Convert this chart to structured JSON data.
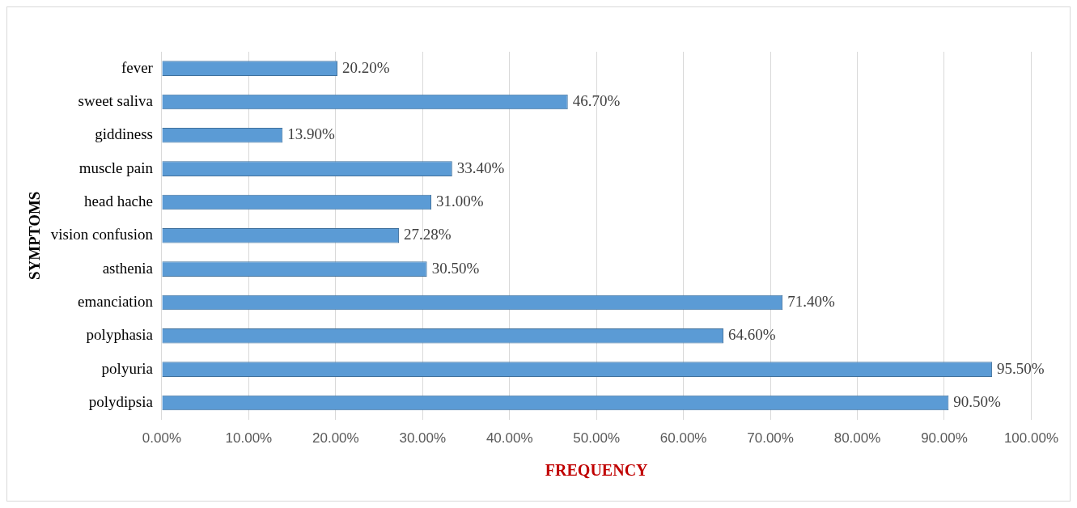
{
  "chart_data": {
    "type": "bar",
    "orientation": "horizontal",
    "xlabel": "FREQUENCY",
    "ylabel": "SYMPTOMS",
    "categories": [
      "fever",
      "sweet saliva",
      "giddiness",
      "muscle pain",
      "head hache",
      "vision confusion",
      "asthenia",
      "emanciation",
      "polyphasia",
      "polyuria",
      "polydipsia"
    ],
    "values": [
      20.2,
      46.7,
      13.9,
      33.4,
      31.0,
      27.28,
      30.5,
      71.4,
      64.6,
      95.5,
      90.5
    ],
    "value_labels": [
      "20.20%",
      "46.70%",
      "13.90%",
      "33.40%",
      "31.00%",
      "27.28%",
      "30.50%",
      "71.40%",
      "64.60%",
      "95.50%",
      "90.50%"
    ],
    "color": "#5b9bd5",
    "xlim": [
      0,
      100
    ],
    "xticks": [
      {
        "value": 0,
        "label": "0.00%"
      },
      {
        "value": 10,
        "label": "10.00%"
      },
      {
        "value": 20,
        "label": "20.00%"
      },
      {
        "value": 30,
        "label": "30.00%"
      },
      {
        "value": 40,
        "label": "40.00%"
      },
      {
        "value": 50,
        "label": "50.00%"
      },
      {
        "value": 60,
        "label": "60.00%"
      },
      {
        "value": 70,
        "label": "70.00%"
      },
      {
        "value": 80,
        "label": "80.00%"
      },
      {
        "value": 90,
        "label": "90.00%"
      },
      {
        "value": 100,
        "label": "100.00%"
      }
    ],
    "grid": "x",
    "legend": false
  }
}
